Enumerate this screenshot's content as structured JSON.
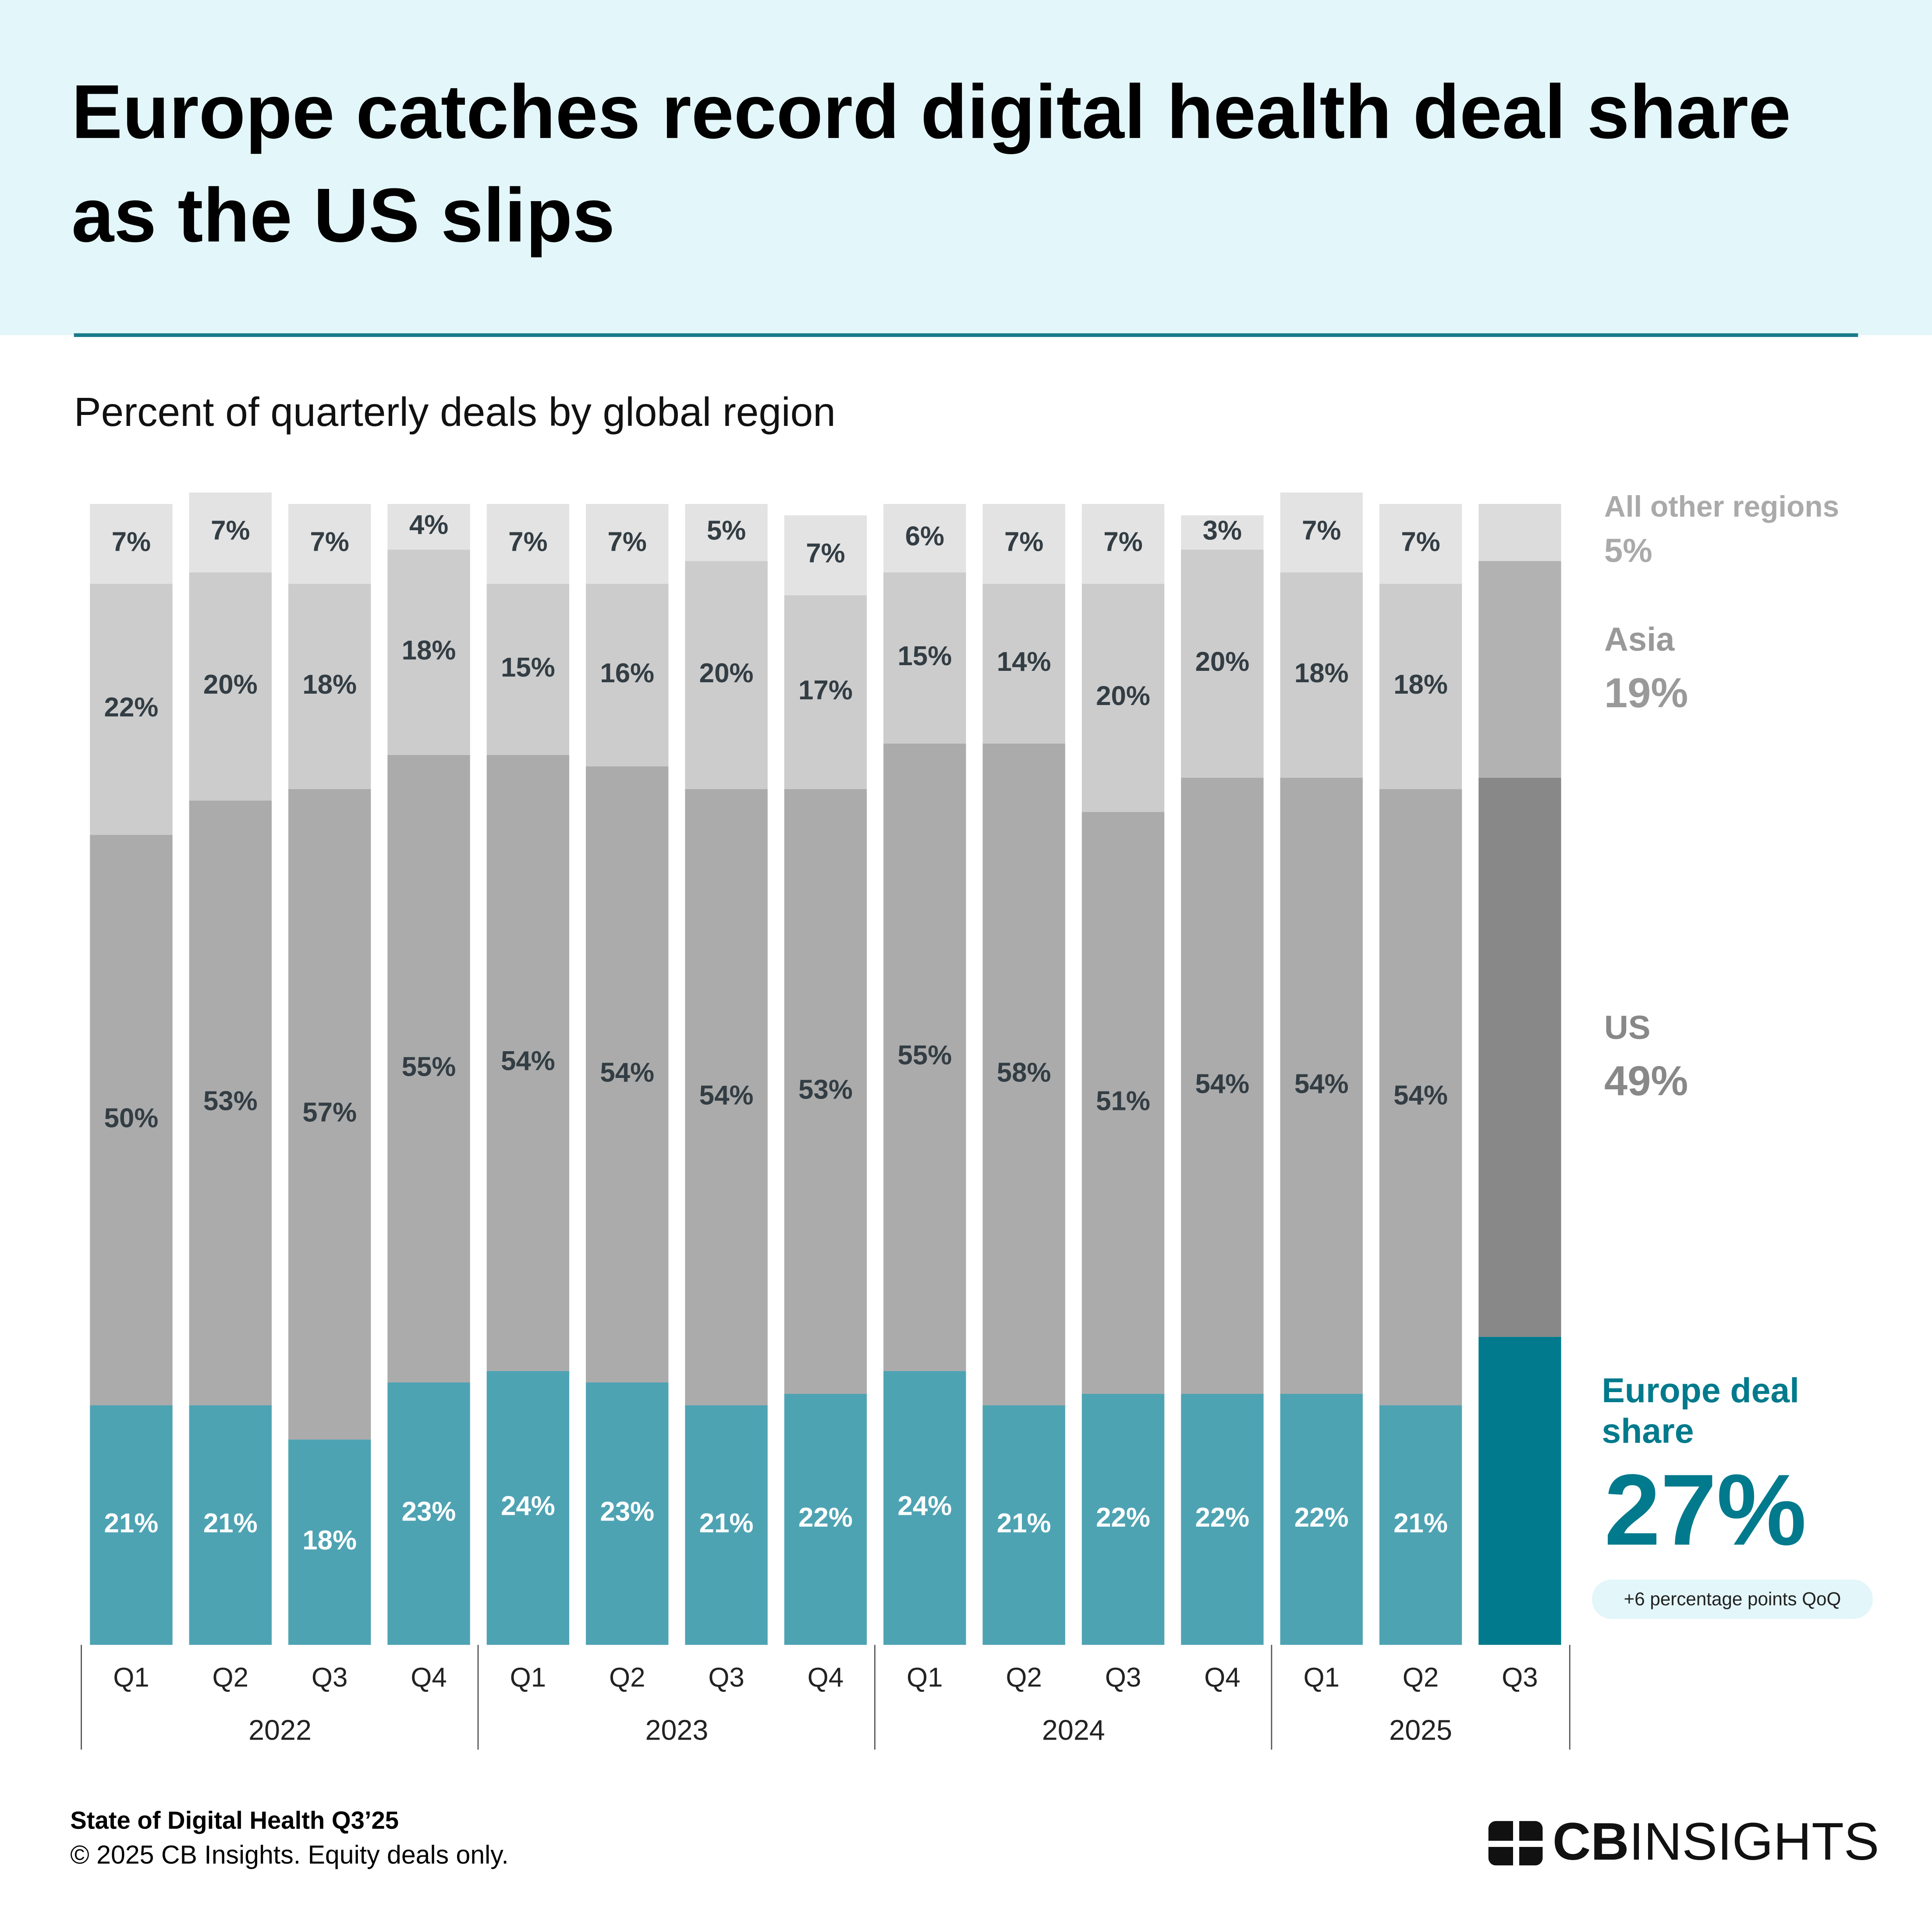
{
  "chart_data": {
    "type": "bar",
    "stacked": true,
    "title": "Europe catches record digital health deal share as the US slips",
    "subtitle": "Percent of quarterly deals by global region",
    "categories": [
      "Q1",
      "Q2",
      "Q3",
      "Q4",
      "Q1",
      "Q2",
      "Q3",
      "Q4",
      "Q1",
      "Q2",
      "Q3",
      "Q4",
      "Q1",
      "Q2",
      "Q3"
    ],
    "years": [
      "2022",
      "2023",
      "2024",
      "2025"
    ],
    "ylim": [
      0,
      100
    ],
    "series": [
      {
        "name": "Europe deal share",
        "color": "#4ea3b3",
        "highlight_color": "#007a8c",
        "values": [
          21,
          21,
          18,
          23,
          24,
          23,
          21,
          22,
          24,
          21,
          22,
          22,
          22,
          21,
          27
        ],
        "value_labels": [
          "21%",
          "21%",
          "18%",
          "23%",
          "24%",
          "23%",
          "21%",
          "22%",
          "24%",
          "21%",
          "22%",
          "22%",
          "22%",
          "21%",
          "27%"
        ]
      },
      {
        "name": "US",
        "color": "#ababab",
        "highlight_color": "#888888",
        "values": [
          50,
          53,
          57,
          55,
          54,
          54,
          54,
          53,
          55,
          58,
          51,
          54,
          54,
          54,
          49
        ],
        "value_labels": [
          "50%",
          "53%",
          "57%",
          "55%",
          "54%",
          "54%",
          "54%",
          "53%",
          "55%",
          "58%",
          "51%",
          "54%",
          "54%",
          "54%",
          "49%"
        ]
      },
      {
        "name": "Asia",
        "color": "#cccccc",
        "highlight_color": "#b2b2b2",
        "values": [
          22,
          20,
          18,
          18,
          15,
          16,
          20,
          17,
          15,
          14,
          20,
          20,
          18,
          18,
          19
        ],
        "value_labels": [
          "22%",
          "20%",
          "18%",
          "18%",
          "15%",
          "16%",
          "20%",
          "17%",
          "15%",
          "14%",
          "20%",
          "20%",
          "18%",
          "18%",
          "19%"
        ]
      },
      {
        "name": "All other regions",
        "color": "#e3e3e3",
        "highlight_color": "#dcdcdc",
        "values": [
          7,
          7,
          7,
          4,
          7,
          7,
          5,
          7,
          6,
          7,
          7,
          3,
          7,
          7,
          5
        ],
        "value_labels": [
          "7%",
          "7%",
          "7%",
          "4%",
          "7%",
          "7%",
          "5%",
          "7%",
          "6%",
          "7%",
          "7%",
          "3%",
          "7%",
          "7%",
          "5%"
        ]
      }
    ],
    "annotation": "+6 percentage points QoQ"
  },
  "footer": {
    "source": "State of Digital Health Q3’25",
    "note": "© 2025 CB Insights. Equity deals only.",
    "logo_bold": "CB",
    "logo_regular": "INSIGHTS"
  }
}
